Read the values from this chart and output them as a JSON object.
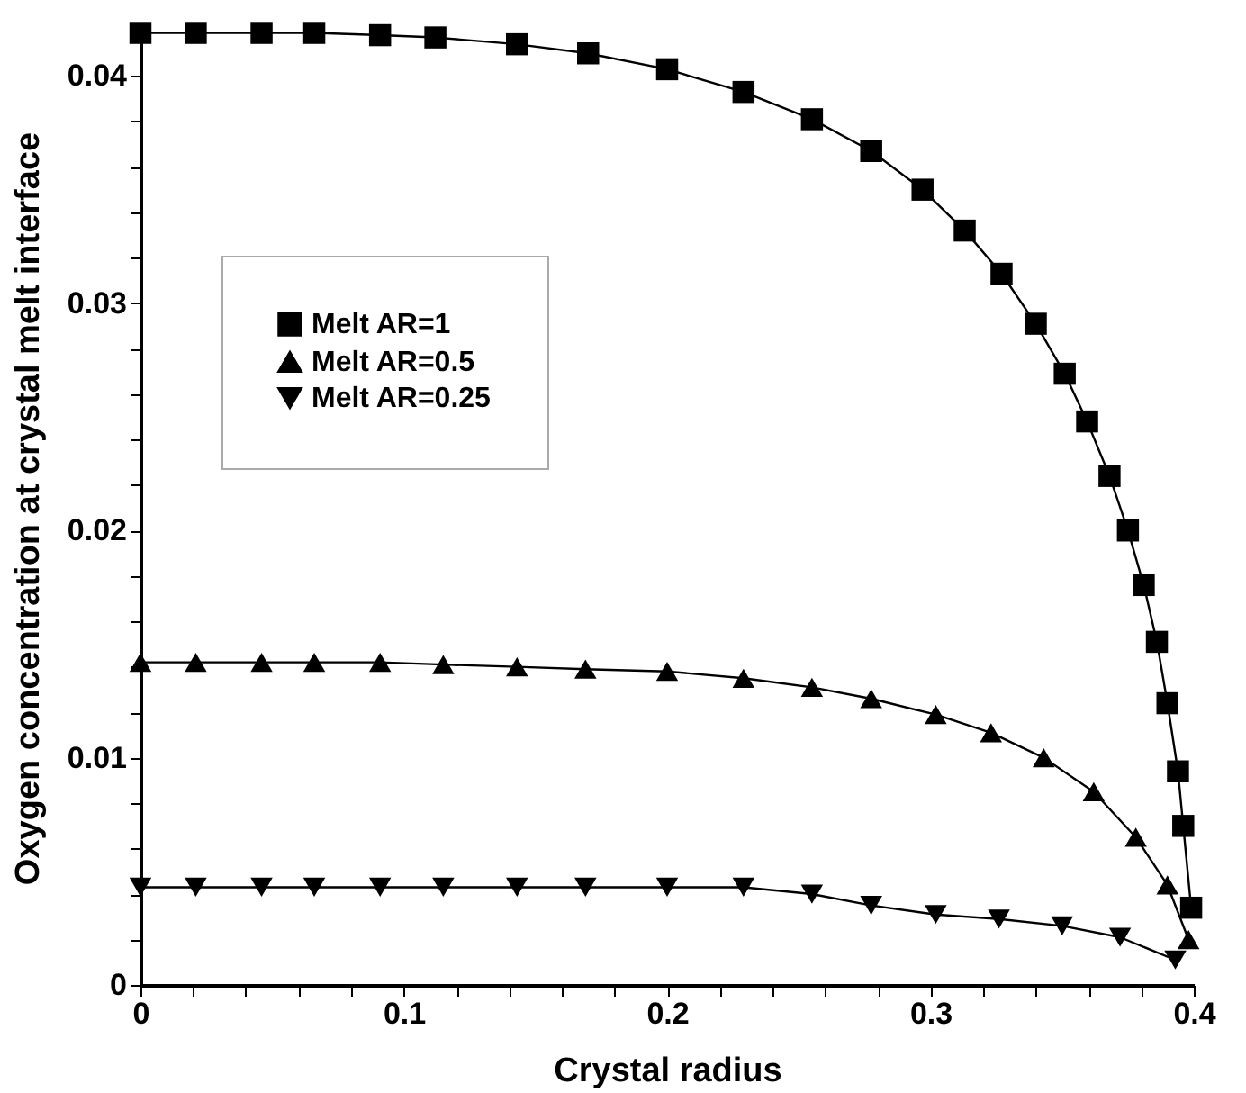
{
  "chart_data": {
    "type": "line",
    "xlabel": "Crystal radius",
    "ylabel": "Oxygen concentration at crystal melt interface",
    "xlim": [
      0,
      0.4
    ],
    "ylim": [
      0,
      0.042
    ],
    "xticks": [
      0,
      {
        "value": 0.02,
        "label": null
      },
      {
        "value": 0.04,
        "label": null
      },
      {
        "value": 0.06,
        "label": null
      },
      {
        "value": 0.08,
        "label": null
      },
      0.1,
      {
        "value": 0.12,
        "label": null
      },
      {
        "value": 0.14,
        "label": null
      },
      {
        "value": 0.16,
        "label": null
      },
      {
        "value": 0.18,
        "label": null
      },
      0.2,
      {
        "value": 0.22,
        "label": null
      },
      {
        "value": 0.24,
        "label": null
      },
      {
        "value": 0.26,
        "label": null
      },
      {
        "value": 0.28,
        "label": null
      },
      0.3,
      {
        "value": 0.32,
        "label": null
      },
      {
        "value": 0.34,
        "label": null
      },
      {
        "value": 0.36,
        "label": null
      },
      {
        "value": 0.38,
        "label": null
      },
      0.4
    ],
    "yticks": [
      0,
      {
        "value": 0.002,
        "label": null
      },
      {
        "value": 0.004,
        "label": null
      },
      {
        "value": 0.006,
        "label": null
      },
      {
        "value": 0.008,
        "label": null
      },
      0.01,
      {
        "value": 0.012,
        "label": null
      },
      {
        "value": 0.014,
        "label": null
      },
      {
        "value": 0.016,
        "label": null
      },
      {
        "value": 0.018,
        "label": null
      },
      0.02,
      {
        "value": 0.022,
        "label": null
      },
      {
        "value": 0.024,
        "label": null
      },
      {
        "value": 0.026,
        "label": null
      },
      {
        "value": 0.028,
        "label": null
      },
      0.03,
      {
        "value": 0.032,
        "label": null
      },
      {
        "value": 0.034,
        "label": null
      },
      {
        "value": 0.036,
        "label": null
      },
      {
        "value": 0.038,
        "label": null
      },
      0.04
    ],
    "grid": false,
    "legend": "top left",
    "line_style": "solid",
    "series": [
      {
        "name": "Melt AR=1",
        "color": "#000000",
        "marker": "square",
        "x": [
          0,
          0.021,
          0.046,
          0.066,
          0.091,
          0.112,
          0.143,
          0.17,
          0.2,
          0.229,
          0.255,
          0.2775,
          0.297,
          0.313,
          0.327,
          0.34,
          0.351,
          0.3595,
          0.368,
          0.375,
          0.381,
          0.386,
          0.39,
          0.394,
          0.396,
          0.399
        ],
        "values": [
          0.0419,
          0.0419,
          0.0419,
          0.0419,
          0.0418,
          0.0417,
          0.0414,
          0.041,
          0.0403,
          0.0393,
          0.0381,
          0.0367,
          0.035,
          0.0332,
          0.0313,
          0.0291,
          0.0269,
          0.0248,
          0.0224,
          0.02,
          0.0176,
          0.0151,
          0.0124,
          0.0094,
          0.007,
          0.0034
        ]
      },
      {
        "name": "Melt AR=0.5",
        "color": "#000000",
        "marker": "triangle",
        "x": [
          0,
          0.021,
          0.046,
          0.066,
          0.091,
          0.115,
          0.143,
          0.169,
          0.2,
          0.229,
          0.255,
          0.2775,
          0.302,
          0.323,
          0.343,
          0.362,
          0.378,
          0.39,
          0.398
        ],
        "values": [
          0.0142,
          0.0142,
          0.0142,
          0.0142,
          0.0142,
          0.0141,
          0.014,
          0.0139,
          0.0138,
          0.0135,
          0.0131,
          0.0126,
          0.0119,
          0.0111,
          0.01,
          0.0085,
          0.0065,
          0.0044,
          0.002
        ]
      },
      {
        "name": "Melt AR=0.25",
        "color": "#000000",
        "marker": "triangle-down",
        "x": [
          0,
          0.021,
          0.046,
          0.066,
          0.091,
          0.115,
          0.143,
          0.169,
          0.2,
          0.229,
          0.255,
          0.2775,
          0.302,
          0.326,
          0.35,
          0.372,
          0.393
        ],
        "values": [
          0.0043,
          0.0043,
          0.0043,
          0.0043,
          0.0043,
          0.0043,
          0.0043,
          0.0043,
          0.0043,
          0.0043,
          0.004,
          0.0035,
          0.0031,
          0.0029,
          0.0026,
          0.0021,
          0.0011
        ]
      }
    ]
  }
}
